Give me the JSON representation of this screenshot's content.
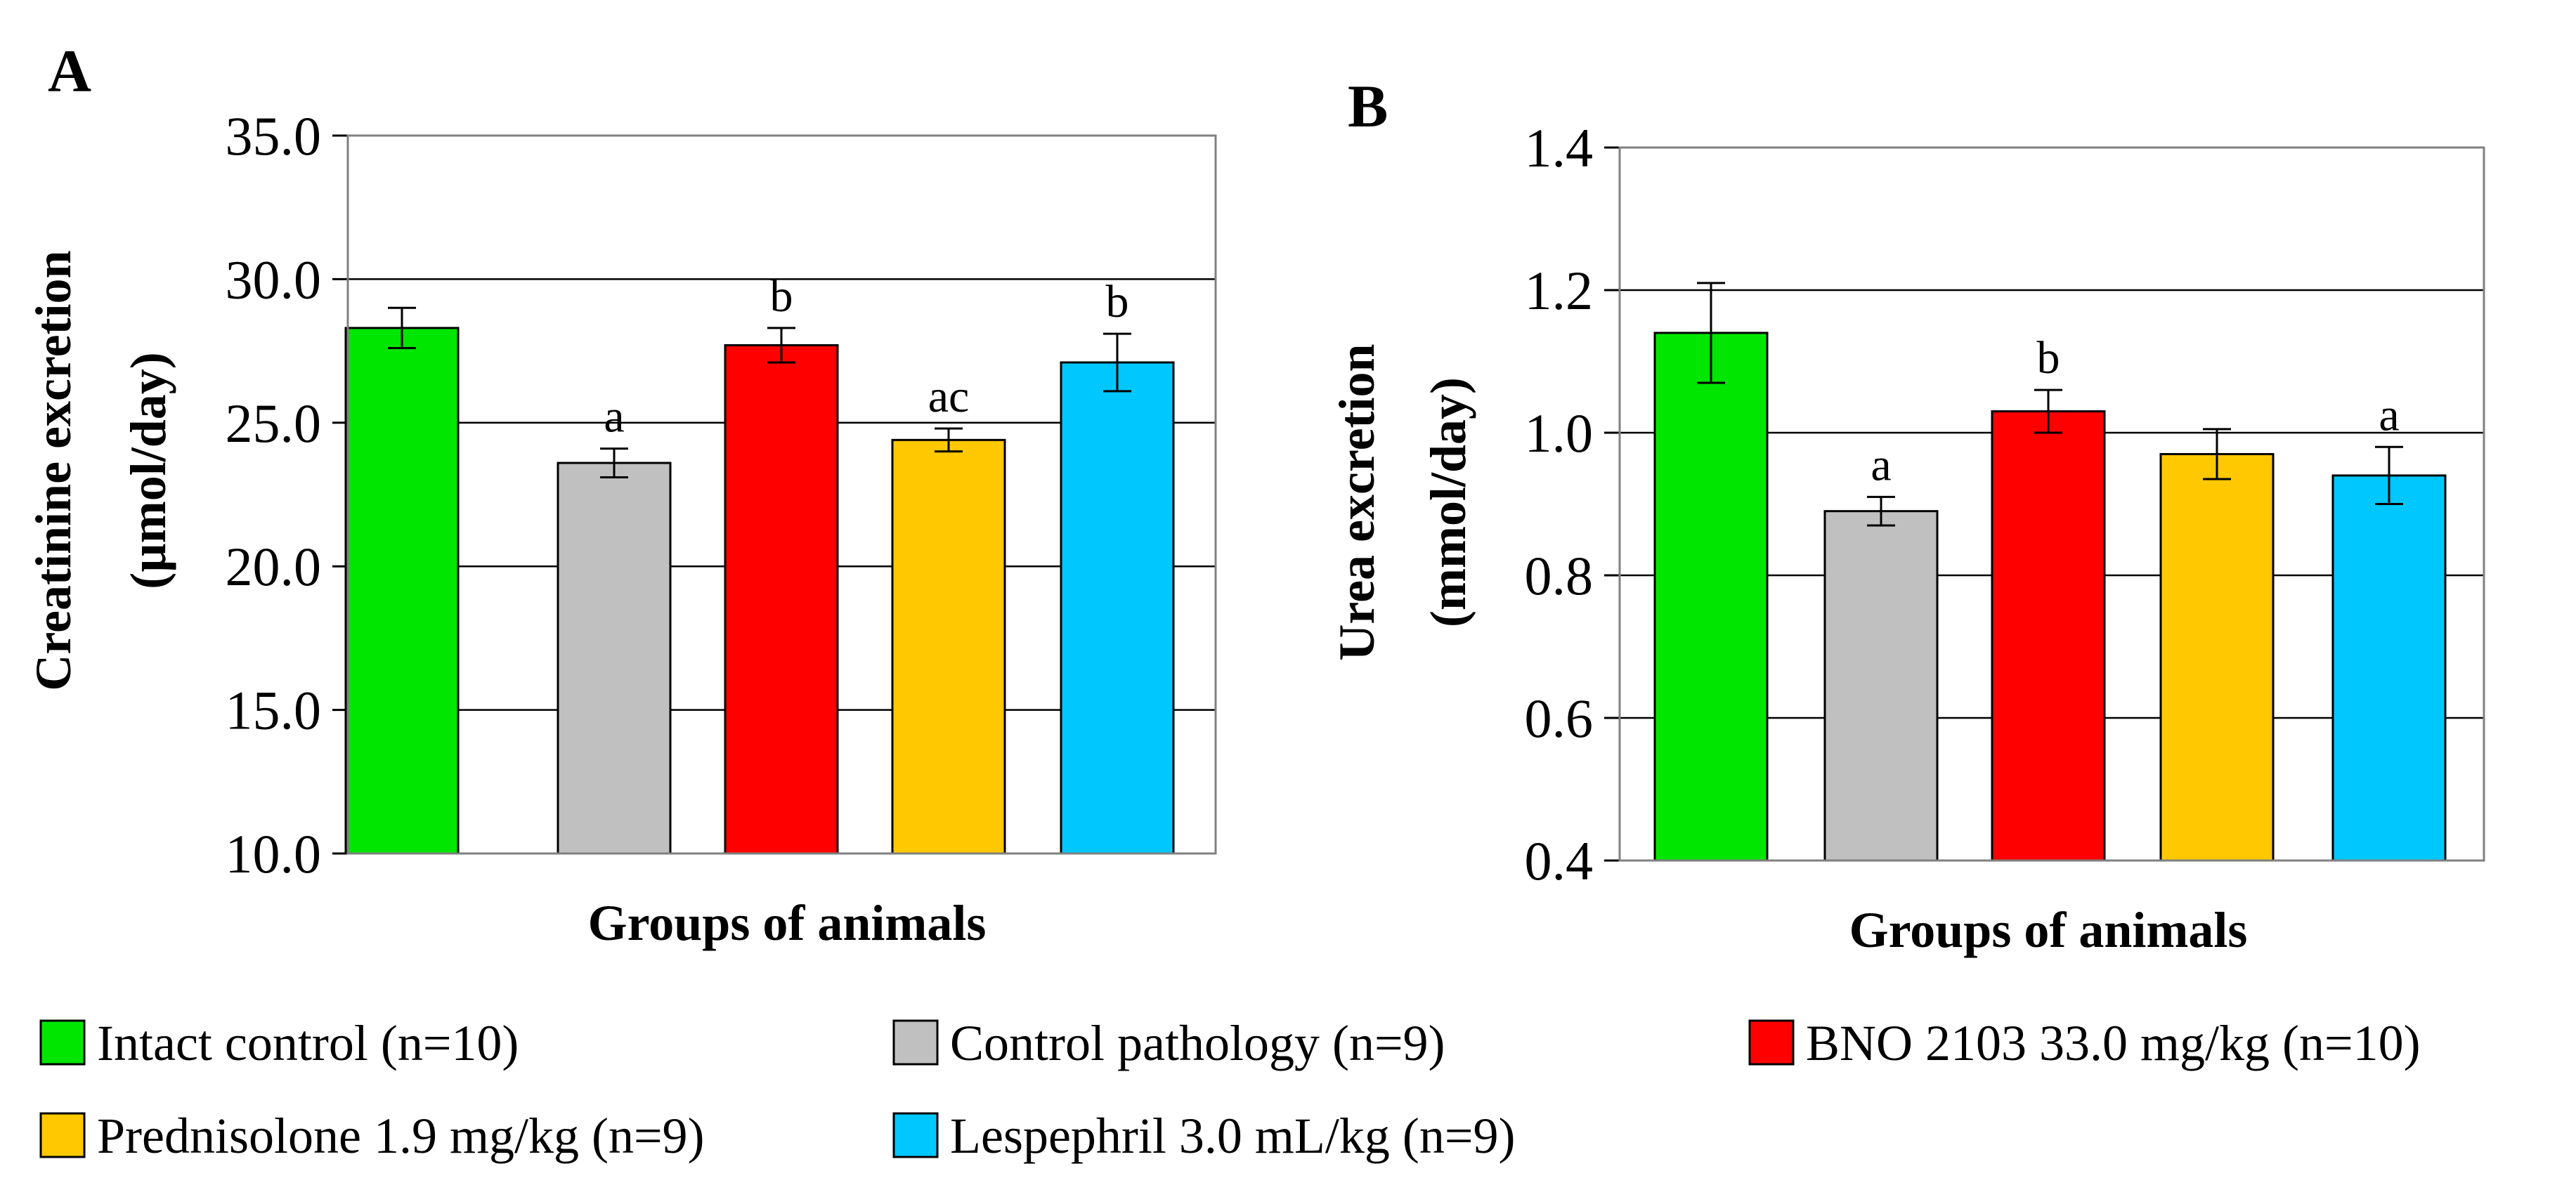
{
  "chart_data": [
    {
      "type": "bar",
      "panel_label": "A",
      "title": "",
      "xlabel": "Groups of animals",
      "ylabel_line1": "Creatinine excretion",
      "ylabel_line2": "(µmol/day)",
      "ylim": [
        10.0,
        35.0
      ],
      "yticks": [
        "35.0",
        "30.0",
        "25.0",
        "20.0",
        "15.0",
        "10.0"
      ],
      "ytick_values": [
        35,
        30,
        25,
        20,
        15,
        10
      ],
      "grid": true,
      "categories": [
        "Intact control (n=10)",
        "Control pathology (n=9)",
        "BNO 2103 33.0 mg/kg (n=10)",
        "Prednisolone 1.9 mg/kg (n=9)",
        "Lespephril 3.0 mL/kg (n=9)"
      ],
      "values": [
        28.3,
        23.6,
        27.7,
        24.4,
        27.1
      ],
      "errors": [
        0.7,
        0.5,
        0.6,
        0.4,
        1.0
      ],
      "annotations": [
        "",
        "a",
        "b",
        "ac",
        "b"
      ]
    },
    {
      "type": "bar",
      "panel_label": "B",
      "title": "",
      "xlabel": "Groups of animals",
      "ylabel_line1": "Urea excretion",
      "ylabel_line2": "(mmol/day)",
      "ylim": [
        0.4,
        1.4
      ],
      "yticks": [
        "1.4",
        "1.2",
        "1.0",
        "0.8",
        "0.6",
        "0.4"
      ],
      "ytick_values": [
        1.4,
        1.2,
        1.0,
        0.8,
        0.6,
        0.4
      ],
      "grid": true,
      "categories": [
        "Intact control (n=10)",
        "Control pathology (n=9)",
        "BNO 2103 33.0 mg/kg (n=10)",
        "Prednisolone 1.9 mg/kg (n=9)",
        "Lespephril 3.0 mL/kg (n=9)"
      ],
      "values": [
        1.14,
        0.89,
        1.03,
        0.97,
        0.94
      ],
      "errors": [
        0.07,
        0.02,
        0.03,
        0.035,
        0.04
      ],
      "annotations": [
        "",
        "a",
        "b",
        "",
        "a"
      ]
    }
  ],
  "legend": {
    "placement": "bottom",
    "items": [
      {
        "label": "Intact control (n=10)",
        "color": "#00e600"
      },
      {
        "label": "Control pathology (n=9)",
        "color": "#c0c0c0"
      },
      {
        "label": "BNO 2103 33.0 mg/kg (n=10)",
        "color": "#ff0000"
      },
      {
        "label": "Prednisolone 1.9 mg/kg (n=9)",
        "color": "#ffc800"
      },
      {
        "label": "Lespephril 3.0 mL/kg (n=9)",
        "color": "#00c8ff"
      }
    ]
  }
}
